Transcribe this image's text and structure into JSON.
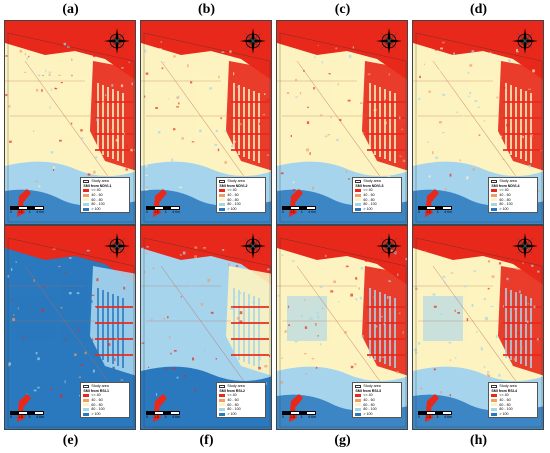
{
  "legend": {
    "study_area": "Study area",
    "items": [
      {
        "label": "<= 40",
        "color": "#e8281a"
      },
      {
        "label": "40 - 60",
        "color": "#f49b6a"
      },
      {
        "label": "60 - 80",
        "color": "#fdf3c0"
      },
      {
        "label": "80 - 100",
        "color": "#a6d4ec"
      },
      {
        "label": "> 100",
        "color": "#2a78be"
      }
    ]
  },
  "scale_bar": {
    "labels": [
      "0",
      "1.5",
      "3",
      "6 Km"
    ]
  },
  "compass_icon": "north-arrow-compass-icon",
  "panels": [
    {
      "label": "(a)",
      "legend_title": "SMI from NDVI-1",
      "pattern": "dry"
    },
    {
      "label": "(b)",
      "legend_title": "SMI from NDVI-2",
      "pattern": "dry"
    },
    {
      "label": "(c)",
      "legend_title": "SMI from NDVI-3",
      "pattern": "dry"
    },
    {
      "label": "(d)",
      "legend_title": "SMI from NDVI-4",
      "pattern": "dry"
    },
    {
      "label": "(e)",
      "legend_title": "SMI from RSI-1",
      "pattern": "wet"
    },
    {
      "label": "(f)",
      "legend_title": "SMI from RSI-2",
      "pattern": "mid"
    },
    {
      "label": "(g)",
      "legend_title": "SMI from RSI-3",
      "pattern": "moist"
    },
    {
      "label": "(h)",
      "legend_title": "SMI from RSI-4",
      "pattern": "moist"
    }
  ]
}
